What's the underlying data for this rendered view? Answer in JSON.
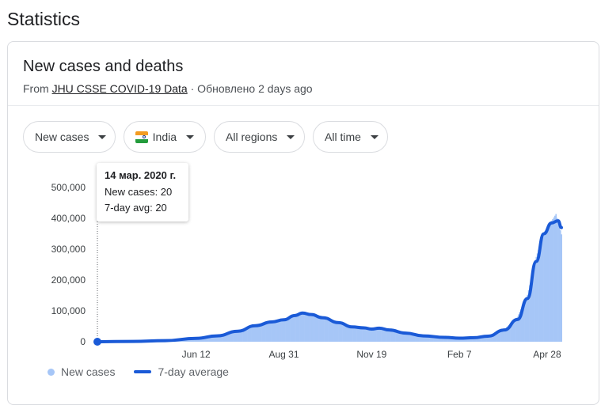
{
  "heading": "Statistics",
  "card": {
    "title": "New cases and deaths",
    "source_prefix": "From ",
    "source_link": "JHU CSSE COVID-19 Data",
    "source_suffix": " · Обновлено 2 days ago"
  },
  "filters": {
    "metric": "New cases",
    "country": "India",
    "region": "All regions",
    "time": "All time"
  },
  "tooltip": {
    "date": "14 мар. 2020 г.",
    "cases": "New cases: 20",
    "avg": "7-day avg: 20"
  },
  "legend": {
    "bars": "New cases",
    "line": "7-day average"
  },
  "colors": {
    "bars": "#a6c6f7",
    "line": "#1a5ad7",
    "accent_dot": "#1a5ad7"
  },
  "chart_data": {
    "type": "area",
    "x_tick_labels": [
      "Jun 12",
      "Aug 31",
      "Nov 19",
      "Feb 7",
      "Apr 28"
    ],
    "y_tick_labels": [
      "0",
      "100,000",
      "200,000",
      "300,000",
      "400,000",
      "500,000"
    ],
    "ylim": [
      0,
      500000
    ],
    "grid": false,
    "legend_position": "bottom-left",
    "series": [
      {
        "name": "7-day average",
        "points": [
          [
            "2020-03-14",
            20
          ],
          [
            "2020-04-15",
            1000
          ],
          [
            "2020-05-15",
            3500
          ],
          [
            "2020-06-12",
            11000
          ],
          [
            "2020-07-01",
            19000
          ],
          [
            "2020-07-20",
            34000
          ],
          [
            "2020-08-05",
            52000
          ],
          [
            "2020-08-20",
            64000
          ],
          [
            "2020-08-31",
            71000
          ],
          [
            "2020-09-10",
            85000
          ],
          [
            "2020-09-17",
            93000
          ],
          [
            "2020-09-25",
            88000
          ],
          [
            "2020-10-05",
            78000
          ],
          [
            "2020-10-20",
            62000
          ],
          [
            "2020-11-01",
            48000
          ],
          [
            "2020-11-12",
            45000
          ],
          [
            "2020-11-19",
            41000
          ],
          [
            "2020-11-26",
            44000
          ],
          [
            "2020-12-05",
            38000
          ],
          [
            "2020-12-20",
            28000
          ],
          [
            "2021-01-05",
            19000
          ],
          [
            "2021-01-25",
            14000
          ],
          [
            "2021-02-07",
            11500
          ],
          [
            "2021-02-20",
            13000
          ],
          [
            "2021-03-05",
            18000
          ],
          [
            "2021-03-20",
            38000
          ],
          [
            "2021-04-01",
            72000
          ],
          [
            "2021-04-10",
            140000
          ],
          [
            "2021-04-18",
            260000
          ],
          [
            "2021-04-25",
            350000
          ],
          [
            "2021-05-02",
            385000
          ],
          [
            "2021-05-08",
            392000
          ],
          [
            "2021-05-11",
            370000
          ]
        ]
      },
      {
        "name": "New cases",
        "points": [
          [
            "2020-03-14",
            20
          ],
          [
            "2020-04-15",
            1300
          ],
          [
            "2020-05-15",
            4000
          ],
          [
            "2020-06-12",
            12000
          ],
          [
            "2020-07-01",
            20000
          ],
          [
            "2020-07-20",
            38000
          ],
          [
            "2020-08-05",
            55000
          ],
          [
            "2020-08-20",
            66000
          ],
          [
            "2020-08-31",
            73000
          ],
          [
            "2020-09-10",
            88000
          ],
          [
            "2020-09-17",
            97000
          ],
          [
            "2020-09-25",
            86000
          ],
          [
            "2020-10-05",
            75000
          ],
          [
            "2020-10-20",
            58000
          ],
          [
            "2020-11-01",
            46000
          ],
          [
            "2020-11-12",
            47000
          ],
          [
            "2020-11-19",
            40000
          ],
          [
            "2020-11-26",
            43000
          ],
          [
            "2020-12-05",
            36000
          ],
          [
            "2020-12-20",
            26000
          ],
          [
            "2021-01-05",
            18000
          ],
          [
            "2021-01-25",
            13000
          ],
          [
            "2021-02-07",
            11000
          ],
          [
            "2021-02-20",
            13500
          ],
          [
            "2021-03-05",
            17000
          ],
          [
            "2021-03-20",
            40000
          ],
          [
            "2021-04-01",
            81000
          ],
          [
            "2021-04-10",
            152000
          ],
          [
            "2021-04-18",
            275000
          ],
          [
            "2021-04-25",
            353000
          ],
          [
            "2021-05-02",
            392000
          ],
          [
            "2021-05-06",
            414000
          ],
          [
            "2021-05-11",
            348000
          ]
        ]
      }
    ]
  }
}
